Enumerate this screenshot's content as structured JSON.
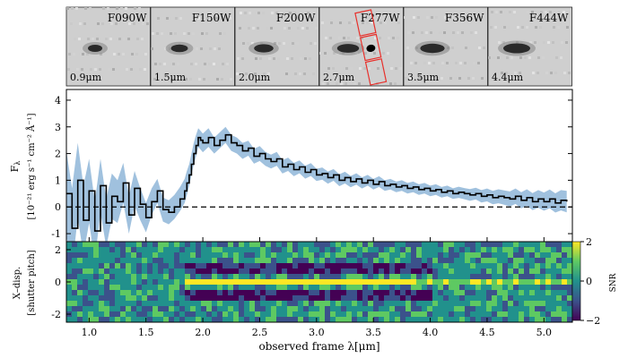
{
  "chart_data": {
    "type": "line",
    "cutouts": [
      {
        "filter": "F090W",
        "wavelength": "0.9μm"
      },
      {
        "filter": "F150W",
        "wavelength": "1.5μm"
      },
      {
        "filter": "F200W",
        "wavelength": "2.0μm"
      },
      {
        "filter": "F277W",
        "wavelength": "2.7μm"
      },
      {
        "filter": "F356W",
        "wavelength": "3.5μm"
      },
      {
        "filter": "F444W",
        "wavelength": "4.4μm"
      }
    ],
    "spectrum": {
      "ylabel_line1": "F",
      "ylabel_sub": "λ",
      "ylabel_line2": "[10⁻²¹ erg s⁻¹ cm⁻² Å⁻¹]",
      "xlim": [
        0.8,
        5.25
      ],
      "ylim": [
        -1.3,
        4.4
      ],
      "yticks": [
        -1,
        0,
        1,
        2,
        3,
        4
      ],
      "zero_line": 0,
      "series": {
        "x": [
          0.8,
          0.85,
          0.9,
          0.95,
          1.0,
          1.05,
          1.1,
          1.15,
          1.2,
          1.25,
          1.3,
          1.35,
          1.4,
          1.45,
          1.5,
          1.55,
          1.6,
          1.65,
          1.7,
          1.75,
          1.8,
          1.84,
          1.86,
          1.88,
          1.9,
          1.92,
          1.94,
          1.96,
          1.98,
          2.0,
          2.05,
          2.1,
          2.15,
          2.2,
          2.25,
          2.3,
          2.35,
          2.4,
          2.45,
          2.5,
          2.55,
          2.6,
          2.65,
          2.7,
          2.75,
          2.8,
          2.85,
          2.9,
          2.95,
          3.0,
          3.05,
          3.1,
          3.15,
          3.2,
          3.25,
          3.3,
          3.35,
          3.4,
          3.45,
          3.5,
          3.55,
          3.6,
          3.65,
          3.7,
          3.75,
          3.8,
          3.85,
          3.9,
          3.95,
          4.0,
          4.05,
          4.1,
          4.15,
          4.2,
          4.25,
          4.3,
          4.35,
          4.4,
          4.45,
          4.5,
          4.55,
          4.6,
          4.65,
          4.7,
          4.75,
          4.8,
          4.85,
          4.9,
          4.95,
          5.0,
          5.05,
          5.1,
          5.15,
          5.2
        ],
        "flux": [
          0.5,
          -0.8,
          1.0,
          -0.5,
          0.6,
          -0.9,
          0.8,
          -0.6,
          0.4,
          0.2,
          0.9,
          -0.3,
          0.7,
          0.1,
          -0.4,
          0.2,
          0.6,
          -0.1,
          -0.2,
          0.0,
          0.3,
          0.6,
          0.9,
          1.2,
          1.6,
          2.0,
          2.3,
          2.6,
          2.5,
          2.4,
          2.6,
          2.3,
          2.5,
          2.7,
          2.4,
          2.3,
          2.1,
          2.2,
          1.9,
          2.0,
          1.8,
          1.7,
          1.8,
          1.5,
          1.6,
          1.4,
          1.5,
          1.3,
          1.4,
          1.2,
          1.25,
          1.1,
          1.2,
          1.0,
          1.1,
          0.95,
          1.05,
          0.9,
          1.0,
          0.85,
          0.95,
          0.8,
          0.85,
          0.75,
          0.8,
          0.7,
          0.75,
          0.65,
          0.7,
          0.6,
          0.65,
          0.55,
          0.6,
          0.5,
          0.55,
          0.5,
          0.45,
          0.5,
          0.4,
          0.45,
          0.35,
          0.4,
          0.35,
          0.3,
          0.4,
          0.25,
          0.35,
          0.2,
          0.3,
          0.2,
          0.3,
          0.15,
          0.25,
          0.2
        ],
        "error": [
          1.6,
          1.5,
          1.4,
          1.3,
          1.2,
          1.1,
          1.0,
          0.9,
          0.85,
          0.8,
          0.75,
          0.7,
          0.65,
          0.6,
          0.55,
          0.5,
          0.45,
          0.45,
          0.45,
          0.45,
          0.45,
          0.45,
          0.45,
          0.4,
          0.4,
          0.4,
          0.4,
          0.35,
          0.35,
          0.35,
          0.35,
          0.3,
          0.3,
          0.3,
          0.3,
          0.3,
          0.3,
          0.28,
          0.28,
          0.28,
          0.26,
          0.26,
          0.26,
          0.25,
          0.25,
          0.25,
          0.24,
          0.24,
          0.24,
          0.23,
          0.23,
          0.23,
          0.22,
          0.22,
          0.22,
          0.21,
          0.21,
          0.21,
          0.2,
          0.2,
          0.2,
          0.2,
          0.2,
          0.2,
          0.2,
          0.2,
          0.2,
          0.2,
          0.2,
          0.2,
          0.2,
          0.2,
          0.2,
          0.2,
          0.21,
          0.21,
          0.22,
          0.22,
          0.23,
          0.24,
          0.25,
          0.26,
          0.27,
          0.28,
          0.29,
          0.3,
          0.31,
          0.32,
          0.33,
          0.34,
          0.35,
          0.36,
          0.38,
          0.4
        ]
      }
    },
    "snr_map": {
      "ylabel_line1": "X–disp.",
      "ylabel_line2": "[shutter pitch]",
      "ylim": [
        -2.5,
        2.5
      ],
      "yticks": [
        -2,
        0,
        2
      ],
      "colorbar_label": "SNR",
      "colorbar_range": [
        -2,
        2
      ],
      "colorbar_ticks": [
        2,
        0,
        -2
      ],
      "colormap": [
        "#440154",
        "#3b528b",
        "#21918c",
        "#5ec962",
        "#fde725"
      ],
      "trace_start": 1.85,
      "trace_end": 3.7
    },
    "xlabel": "observed frame λ[μm]",
    "xticks": [
      1.0,
      1.5,
      2.0,
      2.5,
      3.0,
      3.5,
      4.0,
      4.5,
      5.0
    ],
    "xtick_labels": [
      "1.0",
      "1.5",
      "2.0",
      "2.5",
      "3.0",
      "3.5",
      "4.0",
      "4.5",
      "5.0"
    ],
    "colors": {
      "spectrum": "#000000",
      "error_band": "#8fb6d8",
      "zero_line": "#000000",
      "slit": "#e8302b"
    }
  }
}
